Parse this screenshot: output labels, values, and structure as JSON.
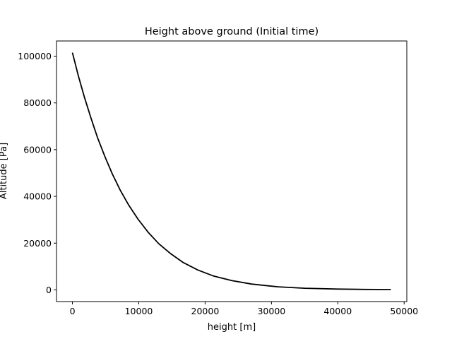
{
  "chart_data": {
    "type": "line",
    "title": "Height above ground (Initial time)",
    "xlabel": "height [m]",
    "ylabel": "Altitude [Pa]",
    "xlim": [
      -2400,
      50400
    ],
    "ylim": [
      -5000,
      106500
    ],
    "xticks": [
      0,
      10000,
      20000,
      30000,
      40000,
      50000
    ],
    "xtick_labels": [
      "0",
      "10000",
      "20000",
      "30000",
      "40000",
      "50000"
    ],
    "yticks": [
      0,
      20000,
      40000,
      60000,
      80000,
      100000
    ],
    "ytick_labels": [
      "0",
      "20000",
      "40000",
      "60000",
      "80000",
      "100000"
    ],
    "grid": false,
    "series": [
      {
        "color": "#000000",
        "x": [
          0,
          900,
          1800,
          2800,
          3800,
          4900,
          6000,
          7200,
          8500,
          9900,
          11400,
          13000,
          14800,
          16700,
          18900,
          21300,
          24000,
          27000,
          31000,
          35000,
          40000,
          44000,
          48000
        ],
        "y": [
          101500,
          91500,
          82500,
          73500,
          65000,
          57000,
          49700,
          42700,
          36200,
          30200,
          24700,
          19800,
          15500,
          11700,
          8500,
          5900,
          4000,
          2500,
          1300,
          700,
          350,
          200,
          130
        ]
      }
    ]
  }
}
